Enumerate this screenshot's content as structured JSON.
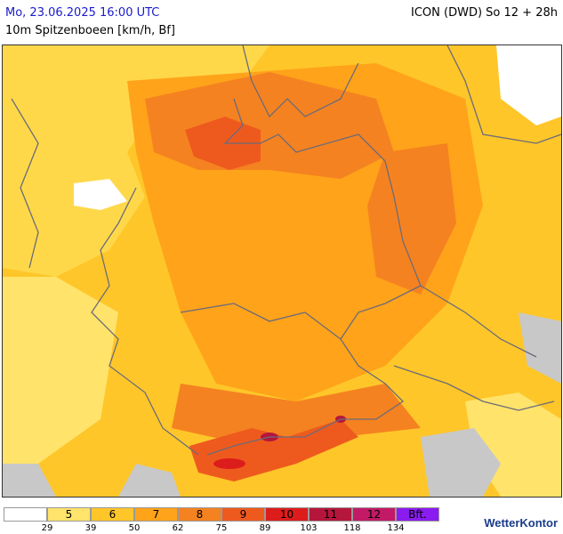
{
  "header": {
    "date": "Mo, 23.06.2025 16:00 UTC",
    "model": "ICON (DWD) So 12 + 28h",
    "parameter": "10m Spitzenboeen [km/h, Bf]"
  },
  "legend": {
    "bins": [
      {
        "label": "",
        "color": "#ffffff"
      },
      {
        "label": "5",
        "color": "#ffe36b"
      },
      {
        "label": "6",
        "color": "#ffc629"
      },
      {
        "label": "7",
        "color": "#ffa31a"
      },
      {
        "label": "8",
        "color": "#f58220"
      },
      {
        "label": "9",
        "color": "#ee5a1e"
      },
      {
        "label": "10",
        "color": "#dd1c1c"
      },
      {
        "label": "11",
        "color": "#b5163c"
      },
      {
        "label": "12",
        "color": "#c21a66"
      },
      {
        "label": "Bft.",
        "color": "#8a1cf0"
      }
    ],
    "ticks": [
      "29",
      "39",
      "50",
      "62",
      "75",
      "89",
      "103",
      "118",
      "134"
    ]
  },
  "brand": "WetterKontor",
  "colors": {
    "land_no_data": "#c8c8c8",
    "borders": "#6b6b7a"
  }
}
